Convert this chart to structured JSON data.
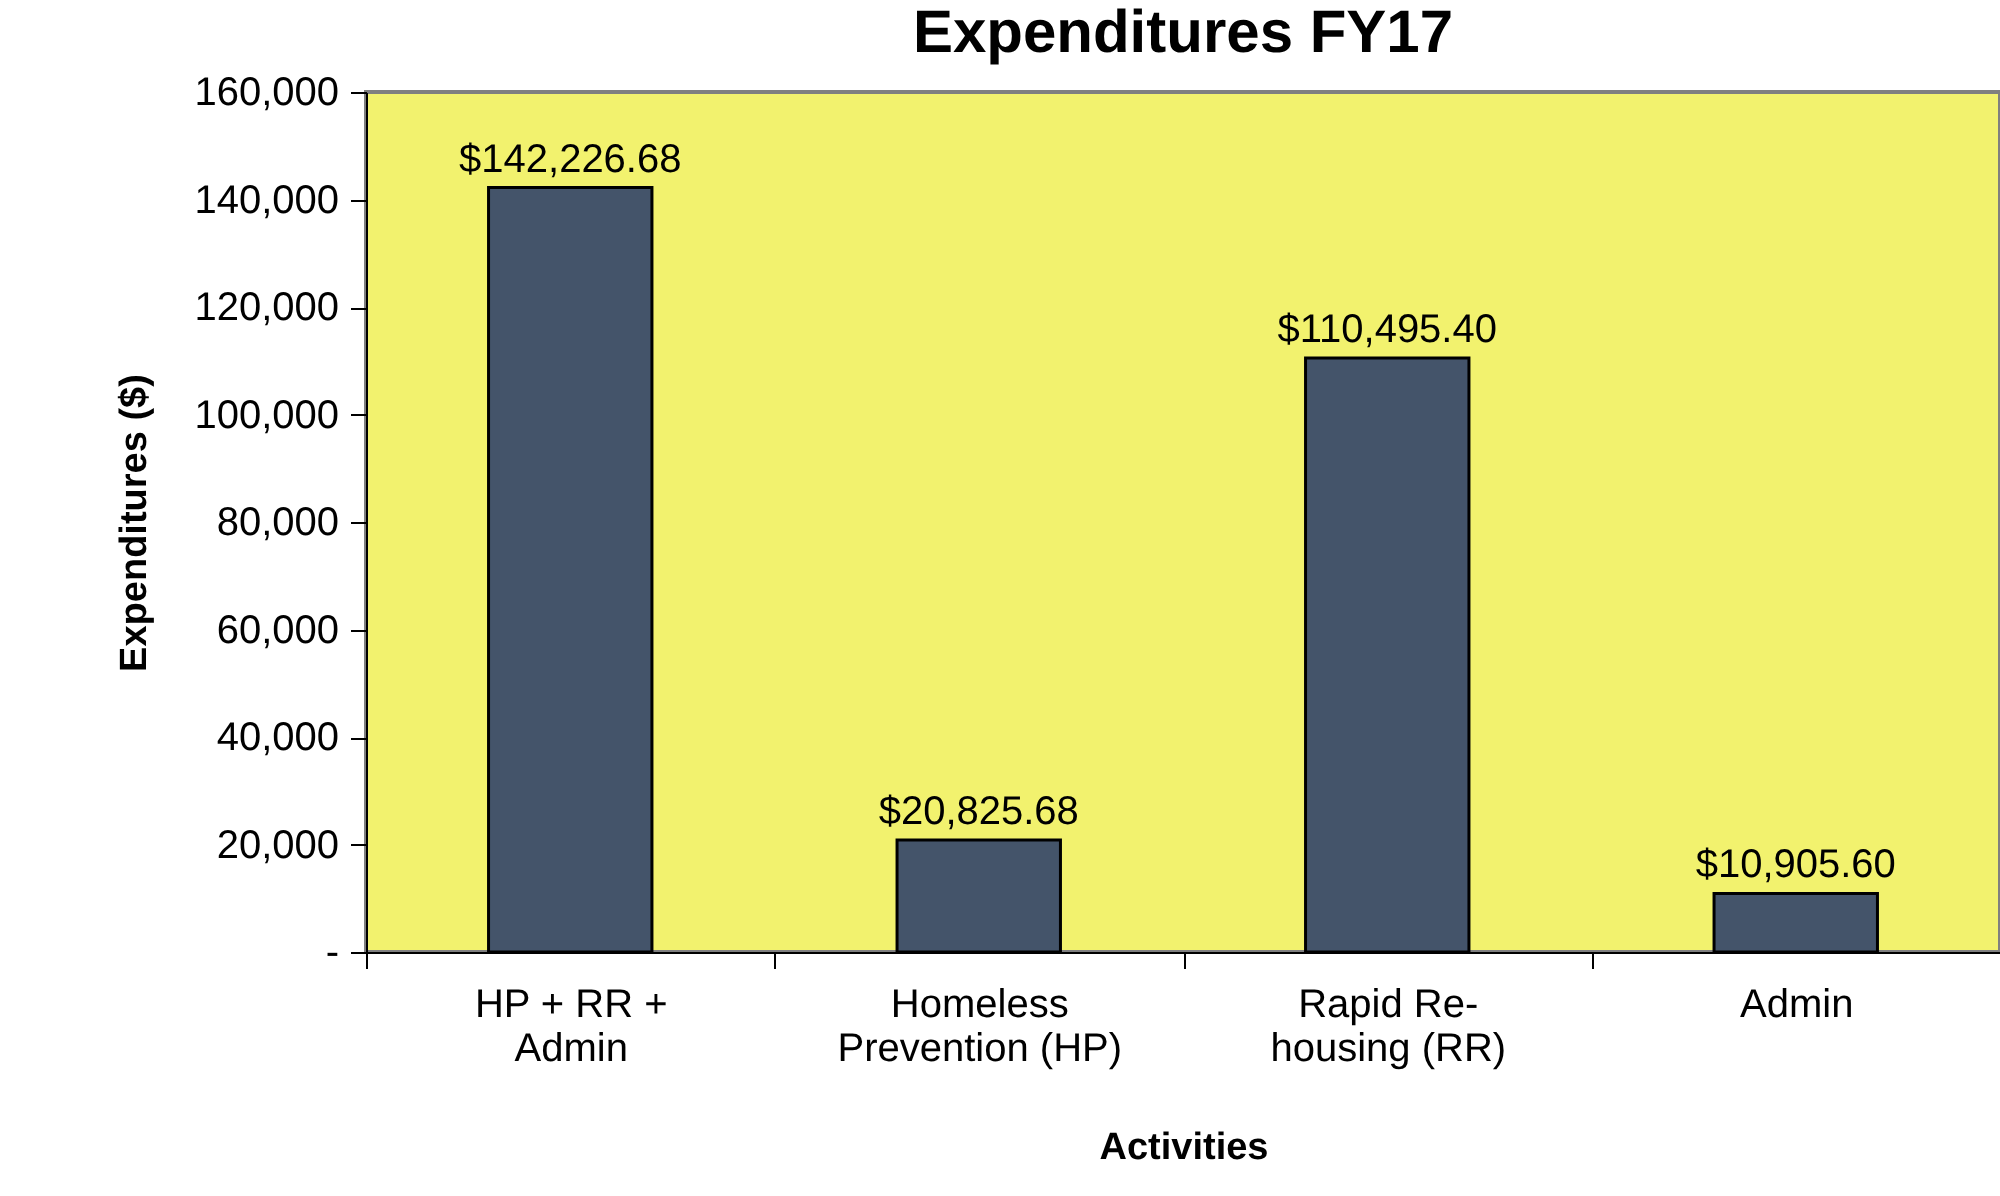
{
  "chart_data": {
    "type": "bar",
    "title": "Expenditures FY17",
    "xlabel": "Activities",
    "ylabel": "Expenditures ($)",
    "categories": [
      "HP + RR +\nAdmin",
      "Homeless\nPrevention (HP)",
      "Rapid Re-\nhousing (RR)",
      "Admin"
    ],
    "values": [
      142226.68,
      20825.68,
      110495.4,
      10905.6
    ],
    "value_labels": [
      "$142,226.68",
      "$20,825.68",
      "$110,495.40",
      "$10,905.60"
    ],
    "color": "#44546a",
    "ylim": [
      0,
      160000
    ],
    "yticks": [
      {
        "value": 0,
        "label": "-"
      },
      {
        "value": 20000,
        "label": "20,000"
      },
      {
        "value": 40000,
        "label": "40,000"
      },
      {
        "value": 60000,
        "label": "60,000"
      },
      {
        "value": 80000,
        "label": "80,000"
      },
      {
        "value": 100000,
        "label": "100,000"
      },
      {
        "value": 120000,
        "label": "120,000"
      },
      {
        "value": 140000,
        "label": "140,000"
      },
      {
        "value": 160000,
        "label": "160,000"
      }
    ],
    "grid": false
  }
}
